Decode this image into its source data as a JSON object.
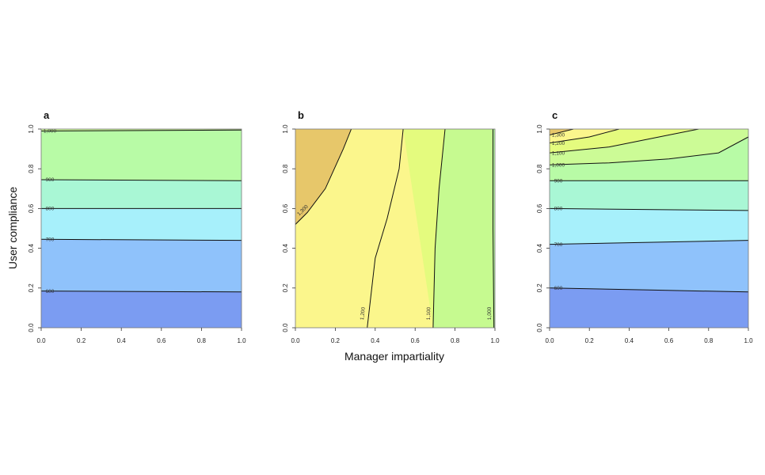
{
  "chart_data": [
    {
      "panel_label": "a",
      "type": "contour",
      "xlabel": "",
      "ylabel": "User compliance",
      "xlim": [
        0,
        1
      ],
      "ylim": [
        0,
        1
      ],
      "x_ticks": [
        "0.0",
        "0.2",
        "0.4",
        "0.6",
        "0.8",
        "1.0"
      ],
      "y_ticks": [
        "0.0",
        "0.2",
        "0.4",
        "0.6",
        "0.8",
        "1.0"
      ],
      "bands": [
        {
          "color": "#7b9cf2",
          "y_top": [
            [
              0,
              0.185
            ],
            [
              1,
              0.18
            ]
          ]
        },
        {
          "color": "#8fc2fb",
          "y_top": [
            [
              0,
              0.445
            ],
            [
              1,
              0.44
            ]
          ]
        },
        {
          "color": "#a7f0fb",
          "y_top": [
            [
              0,
              0.6
            ],
            [
              1,
              0.6
            ]
          ]
        },
        {
          "color": "#a9f7d5",
          "y_top": [
            [
              0,
              0.745
            ],
            [
              1,
              0.74
            ]
          ]
        },
        {
          "color": "#b8fba6",
          "y_top": [
            [
              0,
              0.99
            ],
            [
              1,
              0.995
            ]
          ]
        },
        {
          "color": "#ccfb96",
          "y_top": [
            [
              0,
              1
            ],
            [
              1,
              1
            ]
          ]
        }
      ],
      "contours": [
        {
          "label": "600",
          "points": [
            [
              0,
              0.185
            ],
            [
              1,
              0.18
            ]
          ]
        },
        {
          "label": "700",
          "points": [
            [
              0,
              0.445
            ],
            [
              1,
              0.44
            ]
          ]
        },
        {
          "label": "800",
          "points": [
            [
              0,
              0.6
            ],
            [
              1,
              0.6
            ]
          ]
        },
        {
          "label": "900",
          "points": [
            [
              0,
              0.745
            ],
            [
              1,
              0.74
            ]
          ]
        },
        {
          "label": "1,000",
          "points": [
            [
              0,
              0.99
            ],
            [
              1,
              0.995
            ]
          ]
        }
      ]
    },
    {
      "panel_label": "b",
      "type": "contour",
      "xlabel": "Manager impartiality",
      "ylabel": "",
      "xlim": [
        0,
        1
      ],
      "ylim": [
        0,
        1
      ],
      "x_ticks": [
        "0.0",
        "0.2",
        "0.4",
        "0.6",
        "0.8",
        "1.0"
      ],
      "y_ticks": [
        "0.0",
        "0.2",
        "0.4",
        "0.6",
        "0.8",
        "1.0"
      ],
      "background": "#fbf68c",
      "regions": [
        {
          "color": "#e7c76a",
          "points": [
            [
              0,
              1
            ],
            [
              0.28,
              1
            ],
            [
              0.24,
              0.9
            ],
            [
              0.15,
              0.7
            ],
            [
              0.06,
              0.58
            ],
            [
              0,
              0.52
            ]
          ]
        },
        {
          "color": "#e4fb7e",
          "points": [
            [
              0.54,
              1
            ],
            [
              0.75,
              1
            ],
            [
              0.72,
              0.7
            ],
            [
              0.7,
              0.4
            ],
            [
              0.69,
              0
            ]
          ]
        },
        {
          "color": "#c6fa90",
          "points": [
            [
              0.75,
              1
            ],
            [
              1,
              1
            ],
            [
              1,
              0
            ],
            [
              0.69,
              0
            ],
            [
              0.7,
              0.4
            ],
            [
              0.72,
              0.7
            ]
          ]
        },
        {
          "color": "#b3f69c",
          "points": [
            [
              0.99,
              1
            ],
            [
              1,
              1
            ],
            [
              1,
              0
            ],
            [
              0.995,
              0
            ],
            [
              0.993,
              0.5
            ]
          ]
        }
      ],
      "contours": [
        {
          "label": "1,300",
          "points": [
            [
              0.28,
              1
            ],
            [
              0.24,
              0.9
            ],
            [
              0.15,
              0.7
            ],
            [
              0.06,
              0.58
            ],
            [
              0,
              0.52
            ]
          ]
        },
        {
          "label": "1,200",
          "points": [
            [
              0.54,
              1
            ],
            [
              0.52,
              0.8
            ],
            [
              0.46,
              0.55
            ],
            [
              0.4,
              0.35
            ],
            [
              0.36,
              0
            ]
          ]
        },
        {
          "label": "1,100",
          "points": [
            [
              0.75,
              1
            ],
            [
              0.72,
              0.7
            ],
            [
              0.7,
              0.4
            ],
            [
              0.69,
              0
            ]
          ]
        },
        {
          "label": "1,000",
          "points": [
            [
              0.99,
              1
            ],
            [
              0.99,
              0.5
            ],
            [
              0.995,
              0
            ]
          ]
        }
      ]
    },
    {
      "panel_label": "c",
      "type": "contour",
      "xlabel": "",
      "ylabel": "",
      "xlim": [
        0,
        1
      ],
      "ylim": [
        0,
        1
      ],
      "x_ticks": [
        "0.0",
        "0.2",
        "0.4",
        "0.6",
        "0.8",
        "1.0"
      ],
      "y_ticks": [
        "0.0",
        "0.2",
        "0.4",
        "0.6",
        "0.8",
        "1.0"
      ],
      "bands": [
        {
          "color": "#7b9cf2",
          "y_top": [
            [
              0,
              0.2
            ],
            [
              0.5,
              0.19
            ],
            [
              1,
              0.18
            ]
          ]
        },
        {
          "color": "#8fc2fb",
          "y_top": [
            [
              0,
              0.42
            ],
            [
              0.5,
              0.43
            ],
            [
              1,
              0.44
            ]
          ]
        },
        {
          "color": "#a7f0fb",
          "y_top": [
            [
              0,
              0.6
            ],
            [
              1,
              0.59
            ]
          ]
        },
        {
          "color": "#a9f7d5",
          "y_top": [
            [
              0,
              0.74
            ],
            [
              1,
              0.74
            ]
          ]
        },
        {
          "color": "#b8fba6",
          "y_top": [
            [
              0,
              0.82
            ],
            [
              0.3,
              0.83
            ],
            [
              0.6,
              0.85
            ],
            [
              0.85,
              0.88
            ],
            [
              1,
              0.96
            ]
          ]
        },
        {
          "color": "#ccfb96",
          "y_top": [
            [
              0,
              0.88
            ],
            [
              0.3,
              0.91
            ],
            [
              0.6,
              0.97
            ],
            [
              0.75,
              1
            ],
            [
              1,
              1
            ]
          ]
        },
        {
          "color": "#e4fb7e",
          "y_top": [
            [
              0,
              0.93
            ],
            [
              0.2,
              0.96
            ],
            [
              0.35,
              1
            ],
            [
              1,
              1
            ]
          ]
        },
        {
          "color": "#fbf68c",
          "y_top": [
            [
              0,
              0.97
            ],
            [
              0.12,
              1
            ],
            [
              1,
              1
            ]
          ]
        },
        {
          "color": "#e7c76a",
          "y_top": [
            [
              0,
              1
            ],
            [
              1,
              1
            ]
          ]
        }
      ],
      "contours": [
        {
          "label": "600",
          "points": [
            [
              0,
              0.2
            ],
            [
              0.5,
              0.19
            ],
            [
              1,
              0.18
            ]
          ]
        },
        {
          "label": "700",
          "points": [
            [
              0,
              0.42
            ],
            [
              0.5,
              0.43
            ],
            [
              1,
              0.44
            ]
          ]
        },
        {
          "label": "800",
          "points": [
            [
              0,
              0.6
            ],
            [
              1,
              0.59
            ]
          ]
        },
        {
          "label": "900",
          "points": [
            [
              0,
              0.74
            ],
            [
              1,
              0.74
            ]
          ]
        },
        {
          "label": "1,000",
          "points": [
            [
              0,
              0.82
            ],
            [
              0.3,
              0.83
            ],
            [
              0.6,
              0.85
            ],
            [
              0.85,
              0.88
            ],
            [
              1,
              0.96
            ]
          ]
        },
        {
          "label": "1,100",
          "points": [
            [
              0,
              0.88
            ],
            [
              0.3,
              0.91
            ],
            [
              0.6,
              0.97
            ],
            [
              0.75,
              1
            ]
          ]
        },
        {
          "label": "1,200",
          "points": [
            [
              0,
              0.93
            ],
            [
              0.2,
              0.96
            ],
            [
              0.35,
              1
            ]
          ]
        },
        {
          "label": "1,300",
          "points": [
            [
              0,
              0.97
            ],
            [
              0.12,
              1
            ]
          ]
        }
      ]
    }
  ]
}
